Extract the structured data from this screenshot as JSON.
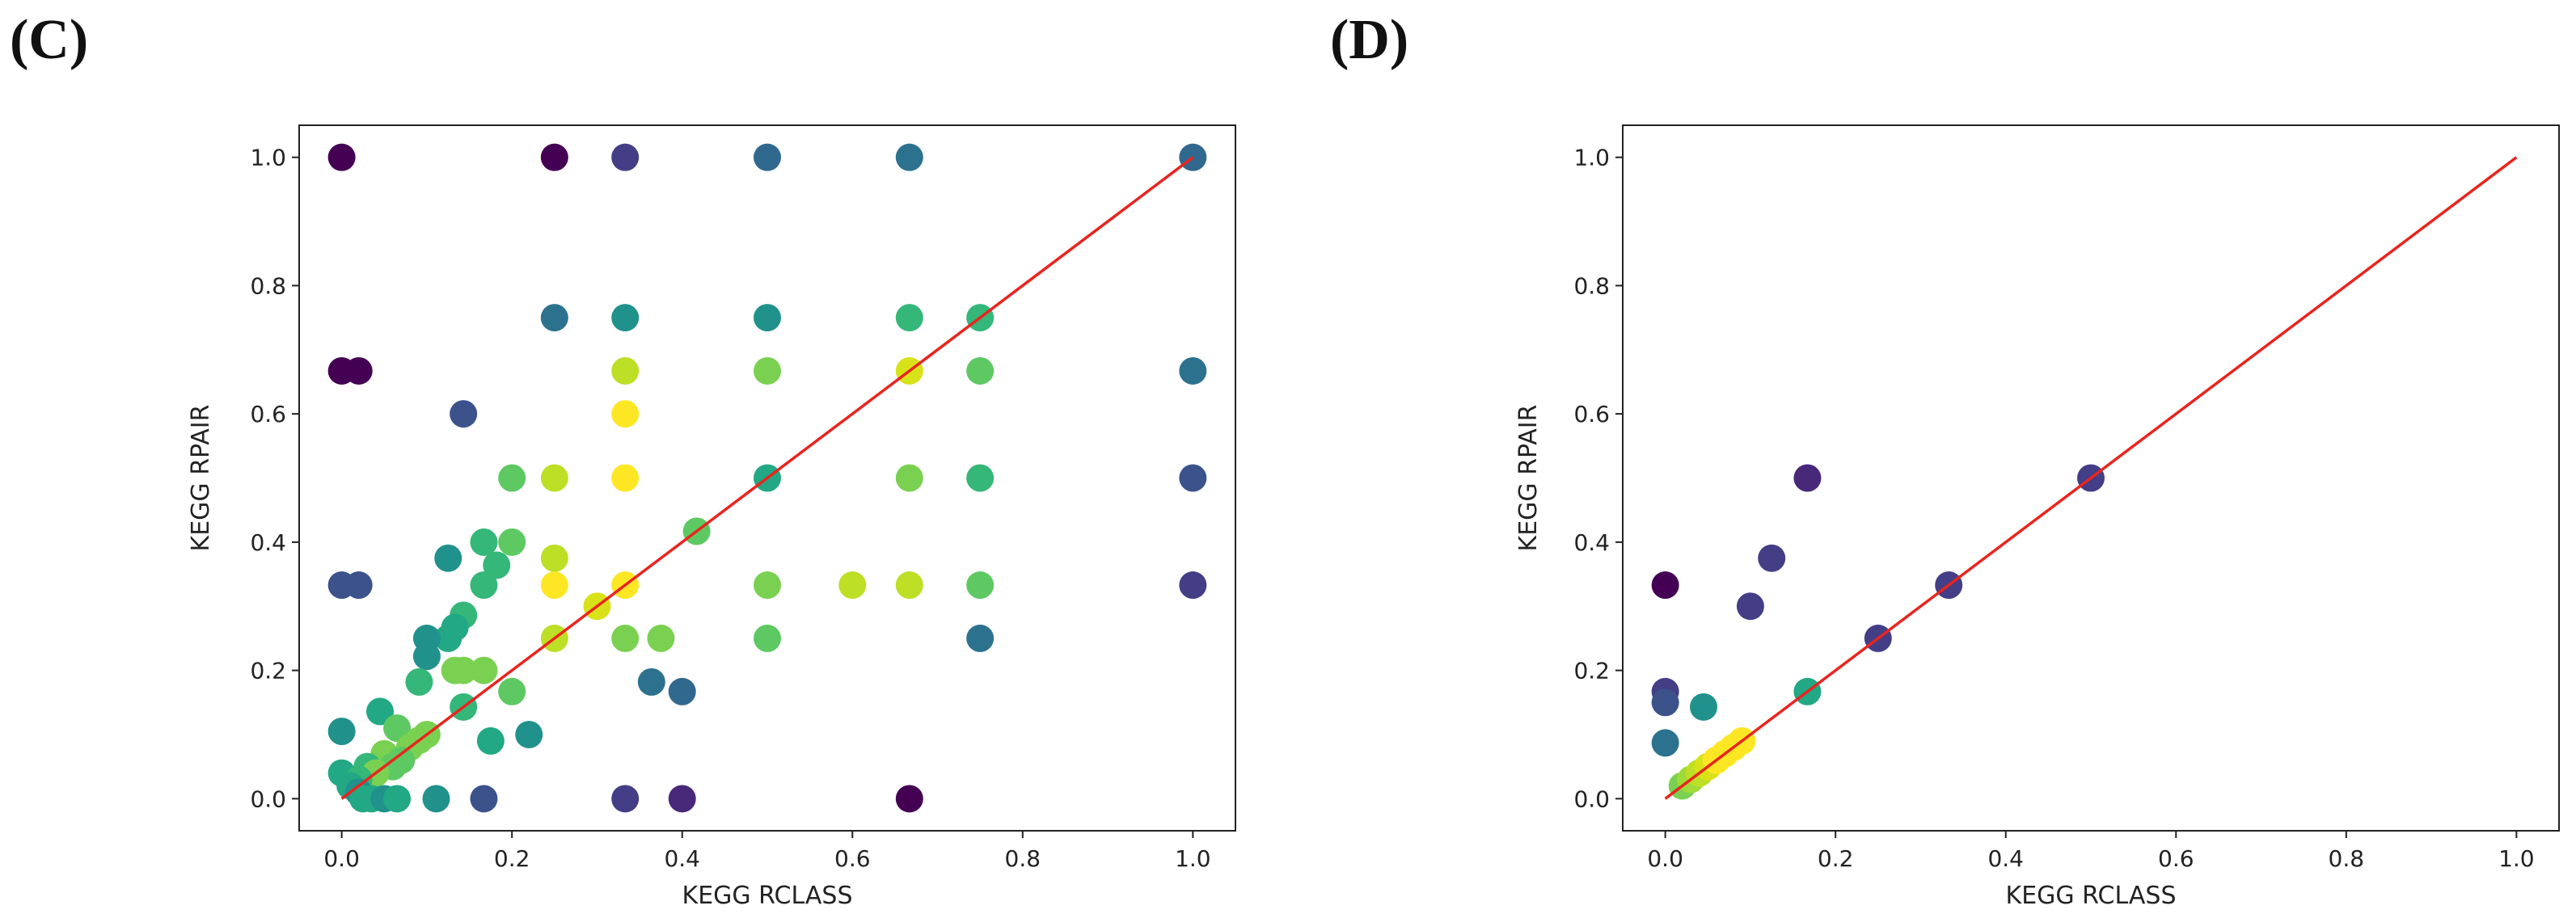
{
  "panels": [
    {
      "label": "(C)"
    },
    {
      "label": "(D)"
    }
  ],
  "chart_data": [
    {
      "type": "scatter",
      "panel": "(C)",
      "xlabel": "KEGG RCLASS",
      "ylabel": "KEGG RPAIR",
      "xlim": [
        -0.05,
        1.05
      ],
      "ylim": [
        -0.05,
        1.05
      ],
      "xticks": [
        "0.0",
        "0.2",
        "0.4",
        "0.6",
        "0.8",
        "1.0"
      ],
      "yticks": [
        "0.0",
        "0.2",
        "0.4",
        "0.6",
        "0.8",
        "1.0"
      ],
      "reference_line": {
        "x": [
          0,
          1
        ],
        "y": [
          0,
          1
        ],
        "color": "#e8251f"
      },
      "points": [
        {
          "x": 0.0,
          "y": 1.0,
          "color": "#440154"
        },
        {
          "x": 0.25,
          "y": 1.0,
          "color": "#440154"
        },
        {
          "x": 0.333,
          "y": 1.0,
          "color": "#433e85"
        },
        {
          "x": 0.5,
          "y": 1.0,
          "color": "#31688e"
        },
        {
          "x": 0.667,
          "y": 1.0,
          "color": "#2c728e"
        },
        {
          "x": 1.0,
          "y": 1.0,
          "color": "#31688e"
        },
        {
          "x": 0.25,
          "y": 0.75,
          "color": "#2c728e"
        },
        {
          "x": 0.333,
          "y": 0.75,
          "color": "#21918c"
        },
        {
          "x": 0.5,
          "y": 0.75,
          "color": "#21918c"
        },
        {
          "x": 0.667,
          "y": 0.75,
          "color": "#35b779"
        },
        {
          "x": 0.75,
          "y": 0.75,
          "color": "#35b779"
        },
        {
          "x": 0.0,
          "y": 0.667,
          "color": "#440154"
        },
        {
          "x": 0.02,
          "y": 0.667,
          "color": "#440154"
        },
        {
          "x": 0.333,
          "y": 0.667,
          "color": "#bddf26"
        },
        {
          "x": 0.5,
          "y": 0.667,
          "color": "#7ad151"
        },
        {
          "x": 0.667,
          "y": 0.667,
          "color": "#d8e219"
        },
        {
          "x": 0.75,
          "y": 0.667,
          "color": "#5ec962"
        },
        {
          "x": 1.0,
          "y": 0.667,
          "color": "#2c728e"
        },
        {
          "x": 0.143,
          "y": 0.6,
          "color": "#3b528b"
        },
        {
          "x": 0.333,
          "y": 0.6,
          "color": "#fde725"
        },
        {
          "x": 0.2,
          "y": 0.5,
          "color": "#5ec962"
        },
        {
          "x": 0.25,
          "y": 0.5,
          "color": "#bddf26"
        },
        {
          "x": 0.333,
          "y": 0.5,
          "color": "#fde725"
        },
        {
          "x": 0.5,
          "y": 0.5,
          "color": "#22a884"
        },
        {
          "x": 0.667,
          "y": 0.5,
          "color": "#7ad151"
        },
        {
          "x": 0.75,
          "y": 0.5,
          "color": "#35b779"
        },
        {
          "x": 1.0,
          "y": 0.5,
          "color": "#3b528b"
        },
        {
          "x": 0.417,
          "y": 0.417,
          "color": "#5ec962"
        },
        {
          "x": 0.167,
          "y": 0.4,
          "color": "#35b779"
        },
        {
          "x": 0.2,
          "y": 0.4,
          "color": "#5ec962"
        },
        {
          "x": 0.125,
          "y": 0.375,
          "color": "#21918c"
        },
        {
          "x": 0.25,
          "y": 0.375,
          "color": "#bddf26"
        },
        {
          "x": 0.182,
          "y": 0.364,
          "color": "#35b779"
        },
        {
          "x": 0.0,
          "y": 0.333,
          "color": "#3b528b"
        },
        {
          "x": 0.02,
          "y": 0.333,
          "color": "#3b528b"
        },
        {
          "x": 0.167,
          "y": 0.333,
          "color": "#35b779"
        },
        {
          "x": 0.25,
          "y": 0.333,
          "color": "#fde725"
        },
        {
          "x": 0.333,
          "y": 0.333,
          "color": "#fde725"
        },
        {
          "x": 0.5,
          "y": 0.333,
          "color": "#7ad151"
        },
        {
          "x": 0.6,
          "y": 0.333,
          "color": "#bddf26"
        },
        {
          "x": 0.667,
          "y": 0.333,
          "color": "#bddf26"
        },
        {
          "x": 0.75,
          "y": 0.333,
          "color": "#5ec962"
        },
        {
          "x": 1.0,
          "y": 0.333,
          "color": "#433e85"
        },
        {
          "x": 0.3,
          "y": 0.3,
          "color": "#d8e219"
        },
        {
          "x": 0.143,
          "y": 0.286,
          "color": "#35b779"
        },
        {
          "x": 0.133,
          "y": 0.267,
          "color": "#22a884"
        },
        {
          "x": 0.125,
          "y": 0.25,
          "color": "#22a884"
        },
        {
          "x": 0.1,
          "y": 0.25,
          "color": "#21918c"
        },
        {
          "x": 0.25,
          "y": 0.25,
          "color": "#bddf26"
        },
        {
          "x": 0.333,
          "y": 0.25,
          "color": "#7ad151"
        },
        {
          "x": 0.375,
          "y": 0.25,
          "color": "#7ad151"
        },
        {
          "x": 0.5,
          "y": 0.25,
          "color": "#5ec962"
        },
        {
          "x": 0.75,
          "y": 0.25,
          "color": "#2c728e"
        },
        {
          "x": 0.1,
          "y": 0.222,
          "color": "#21918c"
        },
        {
          "x": 0.133,
          "y": 0.2,
          "color": "#7ad151"
        },
        {
          "x": 0.143,
          "y": 0.2,
          "color": "#7ad151"
        },
        {
          "x": 0.167,
          "y": 0.2,
          "color": "#7ad151"
        },
        {
          "x": 0.091,
          "y": 0.182,
          "color": "#35b779"
        },
        {
          "x": 0.364,
          "y": 0.182,
          "color": "#2c728e"
        },
        {
          "x": 0.2,
          "y": 0.167,
          "color": "#5ec962"
        },
        {
          "x": 0.4,
          "y": 0.167,
          "color": "#31688e"
        },
        {
          "x": 0.143,
          "y": 0.143,
          "color": "#35b779"
        },
        {
          "x": 0.045,
          "y": 0.136,
          "color": "#22a884"
        },
        {
          "x": 0.065,
          "y": 0.11,
          "color": "#5ec962"
        },
        {
          "x": 0.0,
          "y": 0.105,
          "color": "#21918c"
        },
        {
          "x": 0.22,
          "y": 0.1,
          "color": "#21918c"
        },
        {
          "x": 0.1,
          "y": 0.1,
          "color": "#7ad151"
        },
        {
          "x": 0.091,
          "y": 0.091,
          "color": "#7ad151"
        },
        {
          "x": 0.175,
          "y": 0.09,
          "color": "#22a884"
        },
        {
          "x": 0.08,
          "y": 0.08,
          "color": "#7ad151"
        },
        {
          "x": 0.05,
          "y": 0.07,
          "color": "#7ad151"
        },
        {
          "x": 0.07,
          "y": 0.06,
          "color": "#5ec962"
        },
        {
          "x": 0.03,
          "y": 0.05,
          "color": "#35b779"
        },
        {
          "x": 0.06,
          "y": 0.05,
          "color": "#5ec962"
        },
        {
          "x": 0.0,
          "y": 0.04,
          "color": "#22a884"
        },
        {
          "x": 0.04,
          "y": 0.04,
          "color": "#7ad151"
        },
        {
          "x": 0.02,
          "y": 0.03,
          "color": "#35b779"
        },
        {
          "x": 0.01,
          "y": 0.02,
          "color": "#22a884"
        },
        {
          "x": 0.02,
          "y": 0.01,
          "color": "#21918c"
        },
        {
          "x": 0.025,
          "y": 0.0,
          "color": "#22a884"
        },
        {
          "x": 0.035,
          "y": 0.0,
          "color": "#22a884"
        },
        {
          "x": 0.05,
          "y": 0.0,
          "color": "#21918c"
        },
        {
          "x": 0.065,
          "y": 0.0,
          "color": "#22a884"
        },
        {
          "x": 0.111,
          "y": 0.0,
          "color": "#21918c"
        },
        {
          "x": 0.167,
          "y": 0.0,
          "color": "#3b528b"
        },
        {
          "x": 0.333,
          "y": 0.0,
          "color": "#433e85"
        },
        {
          "x": 0.4,
          "y": 0.0,
          "color": "#482878"
        },
        {
          "x": 0.667,
          "y": 0.0,
          "color": "#440154"
        }
      ]
    },
    {
      "type": "scatter",
      "panel": "(D)",
      "xlabel": "KEGG RCLASS",
      "ylabel": "KEGG RPAIR",
      "xlim": [
        -0.05,
        1.05
      ],
      "ylim": [
        -0.05,
        1.05
      ],
      "xticks": [
        "0.0",
        "0.2",
        "0.4",
        "0.6",
        "0.8",
        "1.0"
      ],
      "yticks": [
        "0.0",
        "0.2",
        "0.4",
        "0.6",
        "0.8",
        "1.0"
      ],
      "reference_line": {
        "x": [
          0,
          1
        ],
        "y": [
          0,
          1
        ],
        "color": "#e8251f"
      },
      "points": [
        {
          "x": 0.0,
          "y": 0.333,
          "color": "#440154"
        },
        {
          "x": 0.0,
          "y": 0.167,
          "color": "#433e85"
        },
        {
          "x": 0.0,
          "y": 0.15,
          "color": "#3b528b"
        },
        {
          "x": 0.0,
          "y": 0.087,
          "color": "#2c728e"
        },
        {
          "x": 0.045,
          "y": 0.143,
          "color": "#21918c"
        },
        {
          "x": 0.167,
          "y": 0.5,
          "color": "#482878"
        },
        {
          "x": 0.125,
          "y": 0.375,
          "color": "#433e85"
        },
        {
          "x": 0.1,
          "y": 0.3,
          "color": "#433e85"
        },
        {
          "x": 0.167,
          "y": 0.167,
          "color": "#22a884"
        },
        {
          "x": 0.25,
          "y": 0.25,
          "color": "#433e85"
        },
        {
          "x": 0.333,
          "y": 0.333,
          "color": "#433e85"
        },
        {
          "x": 0.5,
          "y": 0.5,
          "color": "#433e85"
        },
        {
          "x": 0.02,
          "y": 0.02,
          "color": "#7ad151"
        },
        {
          "x": 0.03,
          "y": 0.03,
          "color": "#a0da39"
        },
        {
          "x": 0.04,
          "y": 0.04,
          "color": "#bddf26"
        },
        {
          "x": 0.05,
          "y": 0.05,
          "color": "#d8e219"
        },
        {
          "x": 0.06,
          "y": 0.06,
          "color": "#fde725"
        },
        {
          "x": 0.07,
          "y": 0.07,
          "color": "#fde725"
        },
        {
          "x": 0.08,
          "y": 0.08,
          "color": "#fde725"
        },
        {
          "x": 0.09,
          "y": 0.09,
          "color": "#fde725"
        }
      ]
    }
  ]
}
